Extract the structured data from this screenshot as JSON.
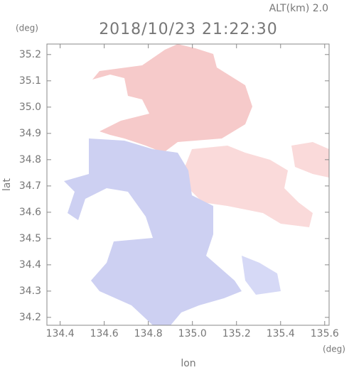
{
  "chart_data": {
    "type": "map",
    "title": "2018/10/23 21:22:30",
    "subtitle": "ALT(km) 2.0",
    "y_unit": "(deg)",
    "x_unit": "(deg)",
    "x_label": "lon",
    "y_label": "lat",
    "xlim": [
      134.34,
      135.62
    ],
    "ylim": [
      34.17,
      35.24
    ],
    "xticks": [
      134.4,
      134.6,
      134.8,
      {
        "value": 135,
        "label": "135.0"
      },
      135.2,
      135.4,
      135.6
    ],
    "yticks": [
      34.2,
      34.3,
      34.4,
      34.5,
      34.6,
      34.7,
      34.8,
      34.9,
      {
        "value": 35,
        "label": "35.0"
      },
      35.1,
      35.2
    ]
  }
}
